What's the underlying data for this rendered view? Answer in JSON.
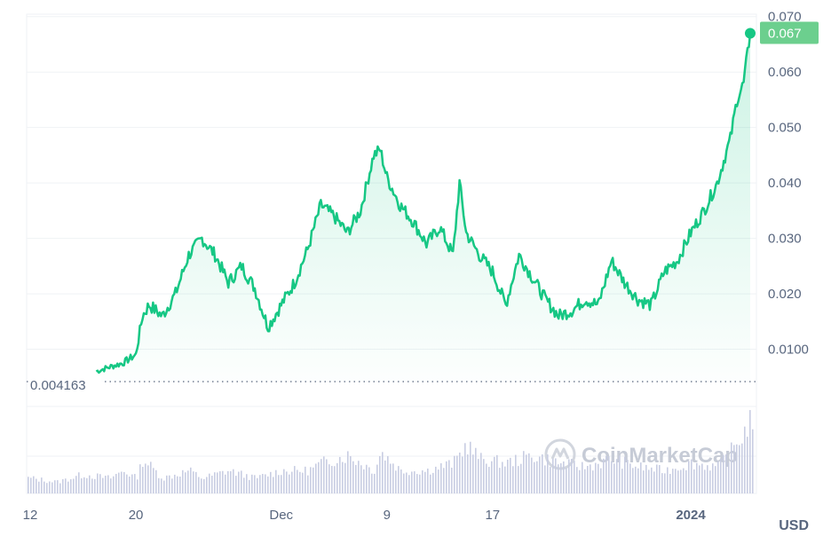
{
  "chart_data": {
    "type": "area",
    "y_ticks": [
      "0.070",
      "0.060",
      "0.050",
      "0.040",
      "0.030",
      "0.020",
      "0.0100"
    ],
    "y_tick_values": [
      0.07,
      0.06,
      0.05,
      0.04,
      0.03,
      0.02,
      0.01
    ],
    "ylim": [
      0.0,
      0.073
    ],
    "x_ticks": [
      {
        "label": "12",
        "day": 0,
        "bold": false
      },
      {
        "label": "20",
        "day": 8,
        "bold": false
      },
      {
        "label": "Dec",
        "day": 19,
        "bold": false
      },
      {
        "label": "9",
        "day": 27,
        "bold": false
      },
      {
        "label": "17",
        "day": 35,
        "bold": false
      },
      {
        "label": "2024",
        "day": 50,
        "bold": true
      }
    ],
    "xlim": [
      0,
      54.5
    ],
    "current_price_label": "0.067",
    "current_price": 0.067,
    "baseline_label": "0.004163",
    "baseline_value": 0.004163,
    "currency": "USD",
    "watermark": "CoinMarketCap",
    "line_color": "#16c784",
    "series": [
      {
        "x": [
          5,
          6,
          7,
          8,
          8.5,
          9,
          10,
          11,
          12,
          13,
          14,
          15,
          16,
          17,
          18,
          19,
          20,
          21,
          22,
          23,
          24,
          25,
          26,
          26.5,
          27,
          28,
          29,
          30,
          31,
          32,
          32.5,
          33,
          34,
          35,
          36,
          37,
          38,
          39,
          40,
          41,
          42,
          43,
          44,
          45,
          46,
          47,
          48,
          49,
          50,
          51,
          52,
          53,
          53.5,
          54,
          54.5
        ],
        "values": [
          0.006,
          0.0068,
          0.0075,
          0.009,
          0.016,
          0.018,
          0.016,
          0.02,
          0.027,
          0.03,
          0.027,
          0.022,
          0.025,
          0.021,
          0.014,
          0.018,
          0.022,
          0.028,
          0.036,
          0.034,
          0.031,
          0.035,
          0.045,
          0.046,
          0.041,
          0.036,
          0.033,
          0.029,
          0.032,
          0.027,
          0.04,
          0.031,
          0.027,
          0.024,
          0.018,
          0.027,
          0.023,
          0.019,
          0.016,
          0.017,
          0.019,
          0.018,
          0.026,
          0.022,
          0.019,
          0.018,
          0.024,
          0.026,
          0.031,
          0.035,
          0.04,
          0.048,
          0.055,
          0.058,
          0.067
        ]
      }
    ],
    "volume": {
      "x": [
        0,
        2,
        4,
        6,
        7,
        8,
        8.5,
        10,
        12,
        13,
        15,
        17,
        19,
        21,
        22,
        24,
        26,
        26.5,
        28,
        30,
        32,
        33,
        34,
        36,
        38,
        40,
        42,
        44,
        46,
        48,
        50,
        52,
        53,
        54,
        54.5
      ],
      "values": [
        0.2,
        0.15,
        0.25,
        0.2,
        0.3,
        0.2,
        0.45,
        0.2,
        0.3,
        0.2,
        0.3,
        0.2,
        0.3,
        0.3,
        0.4,
        0.5,
        0.3,
        0.55,
        0.3,
        0.3,
        0.4,
        0.65,
        0.45,
        0.4,
        0.5,
        0.4,
        0.35,
        0.45,
        0.35,
        0.3,
        0.4,
        0.35,
        0.55,
        0.8,
        1.0
      ]
    }
  }
}
